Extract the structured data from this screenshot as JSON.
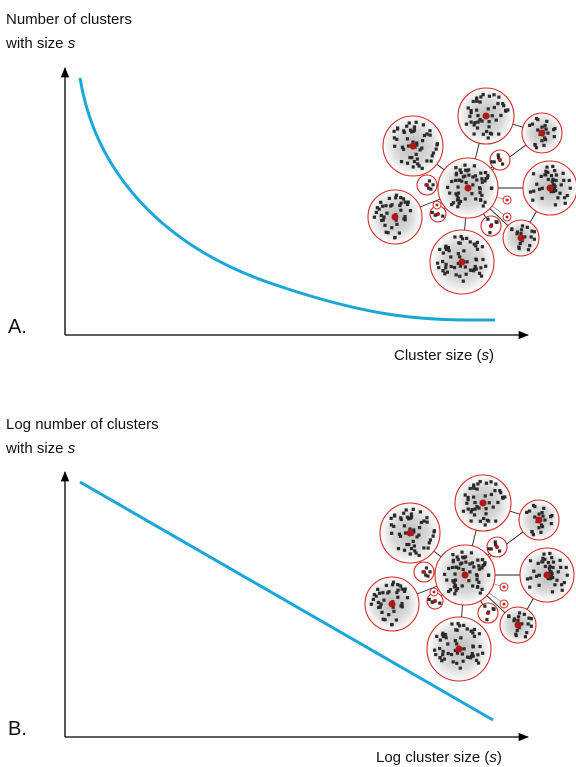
{
  "panels": [
    {
      "label": "A.",
      "y_label_line1": "Number of clusters",
      "y_label_line2": "with size ",
      "y_label_var": "s",
      "x_label_pre": "Cluster size (",
      "x_label_var": "s",
      "x_label_post": ")"
    },
    {
      "label": "B.",
      "y_label_line1": "Log number of clusters",
      "y_label_line2": "with size ",
      "y_label_var": "s",
      "x_label_pre": "Log cluster size (",
      "x_label_var": "s",
      "x_label_post": ")"
    }
  ]
}
